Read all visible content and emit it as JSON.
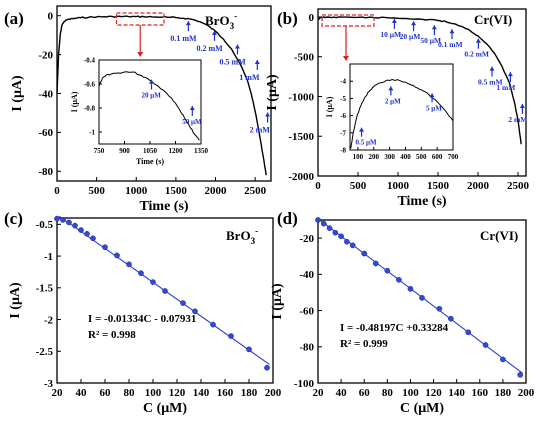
{
  "figure": {
    "panels": [
      {
        "id": "a",
        "label": "(a)"
      },
      {
        "id": "b",
        "label": "(b)"
      },
      {
        "id": "c",
        "label": "(c)"
      },
      {
        "id": "d",
        "label": "(d)"
      }
    ],
    "colors": {
      "curve": "#000000",
      "fit": "#2b3fd6",
      "points": "#3548d4",
      "annot": "#1f2fd0",
      "highlight": "#e0201c"
    }
  },
  "chart_data": [
    {
      "panel": "(a)",
      "type": "line",
      "title": "BrO3-",
      "xlabel": "Time (s)",
      "ylabel": "I (μA)",
      "xlim": [
        0,
        2700
      ],
      "ylim": [
        -85,
        5
      ],
      "xticks": [
        0,
        500,
        1000,
        1500,
        2000,
        2500
      ],
      "yticks": [
        0,
        -20,
        -40,
        -60,
        -80
      ],
      "series": [
        {
          "x": [
            0,
            20,
            40,
            60,
            90,
            130,
            200,
            300,
            400,
            500,
            600,
            700,
            800,
            900,
            1000,
            1100,
            1200,
            1300,
            1400,
            1500,
            1600,
            1700,
            1800,
            1900,
            2000,
            2100,
            2200,
            2300,
            2400,
            2450,
            2500,
            2550,
            2600,
            2640
          ],
          "y": [
            -40,
            -20,
            -10,
            -5,
            -3,
            -2,
            -1.5,
            -1,
            -0.8,
            -0.6,
            -0.5,
            -0.45,
            -0.4,
            -0.4,
            -0.45,
            -0.5,
            -0.6,
            -0.7,
            -0.8,
            -1,
            -1.3,
            -1.8,
            -3,
            -5,
            -8,
            -12,
            -17,
            -24,
            -33,
            -40,
            -49,
            -60,
            -72,
            -82
          ]
        }
      ],
      "annotations": [
        {
          "text": "0.1 mM",
          "x": 1430,
          "y": -11
        },
        {
          "text": "0.2 mM",
          "x": 1760,
          "y": -16
        },
        {
          "text": "0.5 mM",
          "x": 2050,
          "y": -23
        },
        {
          "text": "1 mM",
          "x": 2300,
          "y": -31
        },
        {
          "text": "2 mM",
          "x": 2430,
          "y": -58
        }
      ],
      "inset": {
        "type": "line",
        "xlabel": "Time (s)",
        "ylabel": "I (μA)",
        "xlim": [
          750,
          1350
        ],
        "ylim": [
          -1.1,
          -0.4
        ],
        "xticks": [
          750,
          900,
          1050,
          1200,
          1350
        ],
        "yticks": [
          -0.4,
          -0.6,
          -0.8,
          -1.0
        ],
        "series": [
          {
            "x": [
              750,
              770,
              800,
              850,
              900,
              950,
              1000,
              1050,
              1100,
              1150,
              1200,
              1230,
              1260,
              1290,
              1320,
              1340
            ],
            "y": [
              -0.62,
              -0.55,
              -0.52,
              -0.51,
              -0.5,
              -0.5,
              -0.53,
              -0.57,
              -0.62,
              -0.68,
              -0.76,
              -0.83,
              -0.9,
              -0.97,
              -1.03,
              -1.07
            ]
          }
        ],
        "annotations": [
          {
            "text": "20 μM",
            "x": 1000,
            "y": -0.68
          },
          {
            "text": "50 μM",
            "x": 1240,
            "y": -0.9
          }
        ]
      }
    },
    {
      "panel": "(b)",
      "type": "line",
      "title": "Cr(VI)",
      "xlabel": "Time (s)",
      "ylabel": "I (μA)",
      "xlim": [
        0,
        2600
      ],
      "ylim": [
        -2000,
        100
      ],
      "xticks": [
        0,
        500,
        1000,
        1500,
        2000,
        2500
      ],
      "yticks": [
        0,
        -500,
        -1000,
        -1500,
        -2000
      ],
      "series": [
        {
          "x": [
            0,
            30,
            60,
            100,
            200,
            300,
            500,
            700,
            900,
            1100,
            1300,
            1500,
            1600,
            1700,
            1800,
            1900,
            2000,
            2100,
            2200,
            2300,
            2400,
            2450,
            2500,
            2540
          ],
          "y": [
            -30,
            -10,
            -5,
            -3,
            -2,
            -2,
            -5,
            -8,
            -12,
            -20,
            -30,
            -45,
            -60,
            -85,
            -120,
            -170,
            -240,
            -330,
            -450,
            -620,
            -850,
            -1050,
            -1300,
            -1600
          ]
        }
      ],
      "annotations": [
        {
          "text": "10 μM",
          "x": 780,
          "y": -200
        },
        {
          "text": "20 μM",
          "x": 1020,
          "y": -230
        },
        {
          "text": "50 μM",
          "x": 1280,
          "y": -280
        },
        {
          "text": "0.1 mM",
          "x": 1500,
          "y": -330
        },
        {
          "text": "0.2 mM",
          "x": 1830,
          "y": -450
        },
        {
          "text": "0.5 mM",
          "x": 2000,
          "y": -800
        },
        {
          "text": "1 mM",
          "x": 2230,
          "y": -870
        },
        {
          "text": "2 mM",
          "x": 2380,
          "y": -1270
        }
      ],
      "inset": {
        "type": "line",
        "xlabel": "",
        "ylabel": "I (μA)",
        "xlim": [
          50,
          700
        ],
        "ylim": [
          -8,
          -3
        ],
        "xticks": [
          100,
          200,
          300,
          400,
          500,
          600,
          700
        ],
        "yticks": [
          -4,
          -5,
          -6,
          -7,
          -8
        ],
        "series": [
          {
            "x": [
              55,
              70,
              90,
              110,
              140,
              170,
              200,
              240,
              280,
              320,
              360,
              400,
              450,
              500,
              550,
              600,
              650,
              700
            ],
            "y": [
              -7.9,
              -7.0,
              -6.2,
              -5.6,
              -5.0,
              -4.6,
              -4.3,
              -4.1,
              -3.95,
              -3.9,
              -3.95,
              -4.05,
              -4.25,
              -4.5,
              -4.8,
              -5.2,
              -5.7,
              -6.3
            ]
          }
        ],
        "annotations": [
          {
            "text": "0.5 μM",
            "x": 85,
            "y": -7.4
          },
          {
            "text": "2 μM",
            "x": 270,
            "y": -5.0
          },
          {
            "text": "5 μM",
            "x": 530,
            "y": -5.4
          }
        ]
      }
    },
    {
      "panel": "(c)",
      "type": "scatter",
      "title": "BrO3-",
      "xlabel": "C (μM)",
      "ylabel": "I (μA)",
      "xlim": [
        20,
        200
      ],
      "ylim": [
        -3.0,
        -0.4
      ],
      "xticks": [
        20,
        40,
        60,
        80,
        100,
        120,
        140,
        160,
        180,
        200
      ],
      "yticks": [
        -0.5,
        -1.0,
        -1.5,
        -2.0,
        -2.5,
        -3.0
      ],
      "x": [
        20,
        25,
        30,
        35,
        40,
        45,
        50,
        60,
        70,
        80,
        90,
        100,
        110,
        125,
        135,
        150,
        165,
        180,
        195
      ],
      "y": [
        -0.41,
        -0.43,
        -0.47,
        -0.52,
        -0.59,
        -0.65,
        -0.72,
        -0.86,
        -0.99,
        -1.13,
        -1.27,
        -1.41,
        -1.55,
        -1.74,
        -1.87,
        -2.08,
        -2.26,
        -2.47,
        -2.76
      ],
      "fit": {
        "slope": -0.01334,
        "intercept": -0.07931,
        "equation": "I = -0.01334C - 0.07931",
        "r2": "R² = 0.998"
      }
    },
    {
      "panel": "(d)",
      "type": "scatter",
      "title": "Cr(VI)",
      "xlabel": "C (μM)",
      "ylabel": "I (μA)",
      "xlim": [
        20,
        200
      ],
      "ylim": [
        -100,
        -10
      ],
      "xticks": [
        20,
        40,
        60,
        80,
        100,
        120,
        140,
        160,
        180,
        200
      ],
      "yticks": [
        -20,
        -40,
        -60,
        -80,
        -100
      ],
      "x": [
        20,
        25,
        30,
        35,
        40,
        45,
        50,
        60,
        70,
        80,
        90,
        100,
        110,
        125,
        135,
        150,
        165,
        180,
        195
      ],
      "y": [
        -10,
        -12,
        -14.5,
        -17,
        -19,
        -22,
        -24,
        -28.5,
        -34,
        -38,
        -43,
        -48,
        -53,
        -59,
        -64.5,
        -72,
        -79,
        -87,
        -95.5
      ],
      "fit": {
        "slope": -0.48197,
        "intercept": 0.33284,
        "equation": "I = -0.48197C +0.33284",
        "r2": "R² = 0.999"
      }
    }
  ]
}
